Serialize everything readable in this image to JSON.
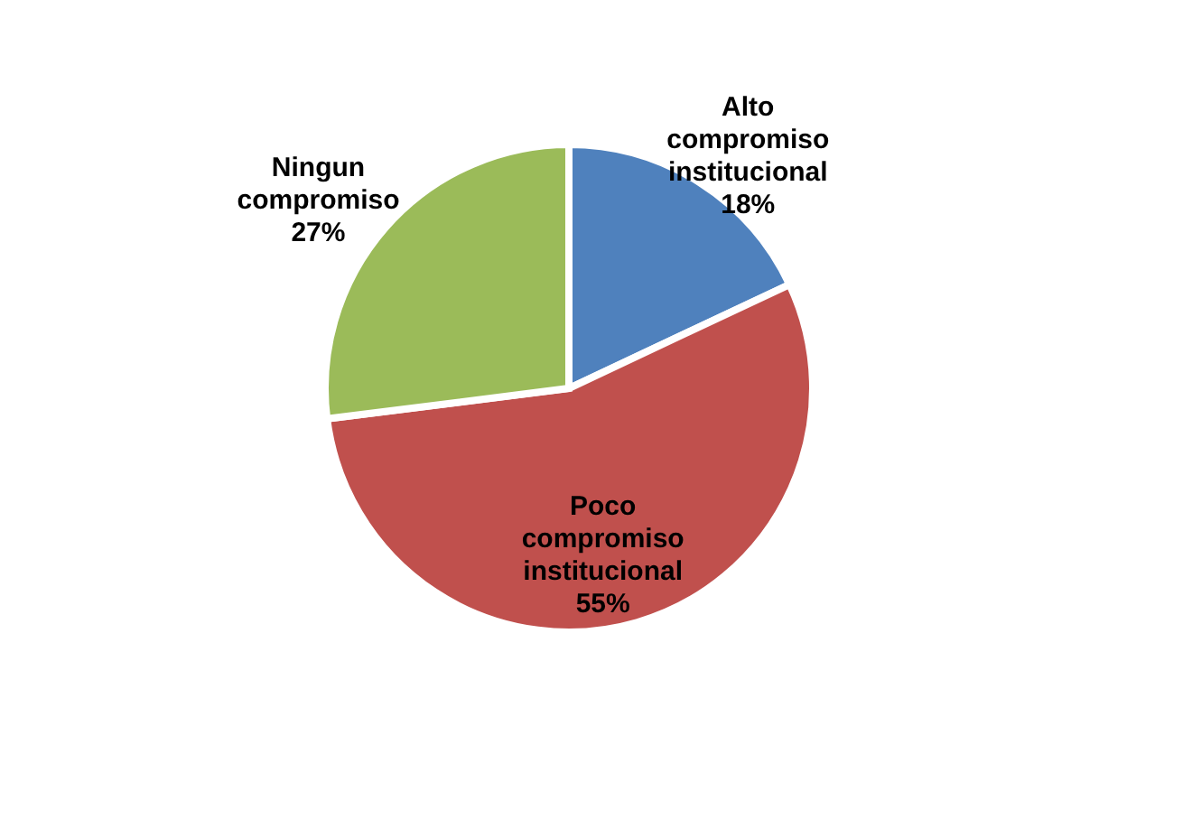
{
  "chart_data": {
    "type": "pie",
    "categories": [
      "Alto compromiso institucional",
      "Poco compromiso institucional",
      "Ningun compromiso"
    ],
    "values": [
      18,
      55,
      27
    ],
    "colors": [
      "#4f81bd",
      "#c0504d",
      "#9bbb59"
    ],
    "value_labels": [
      "18%",
      "55%",
      "27%"
    ],
    "legend": false
  }
}
